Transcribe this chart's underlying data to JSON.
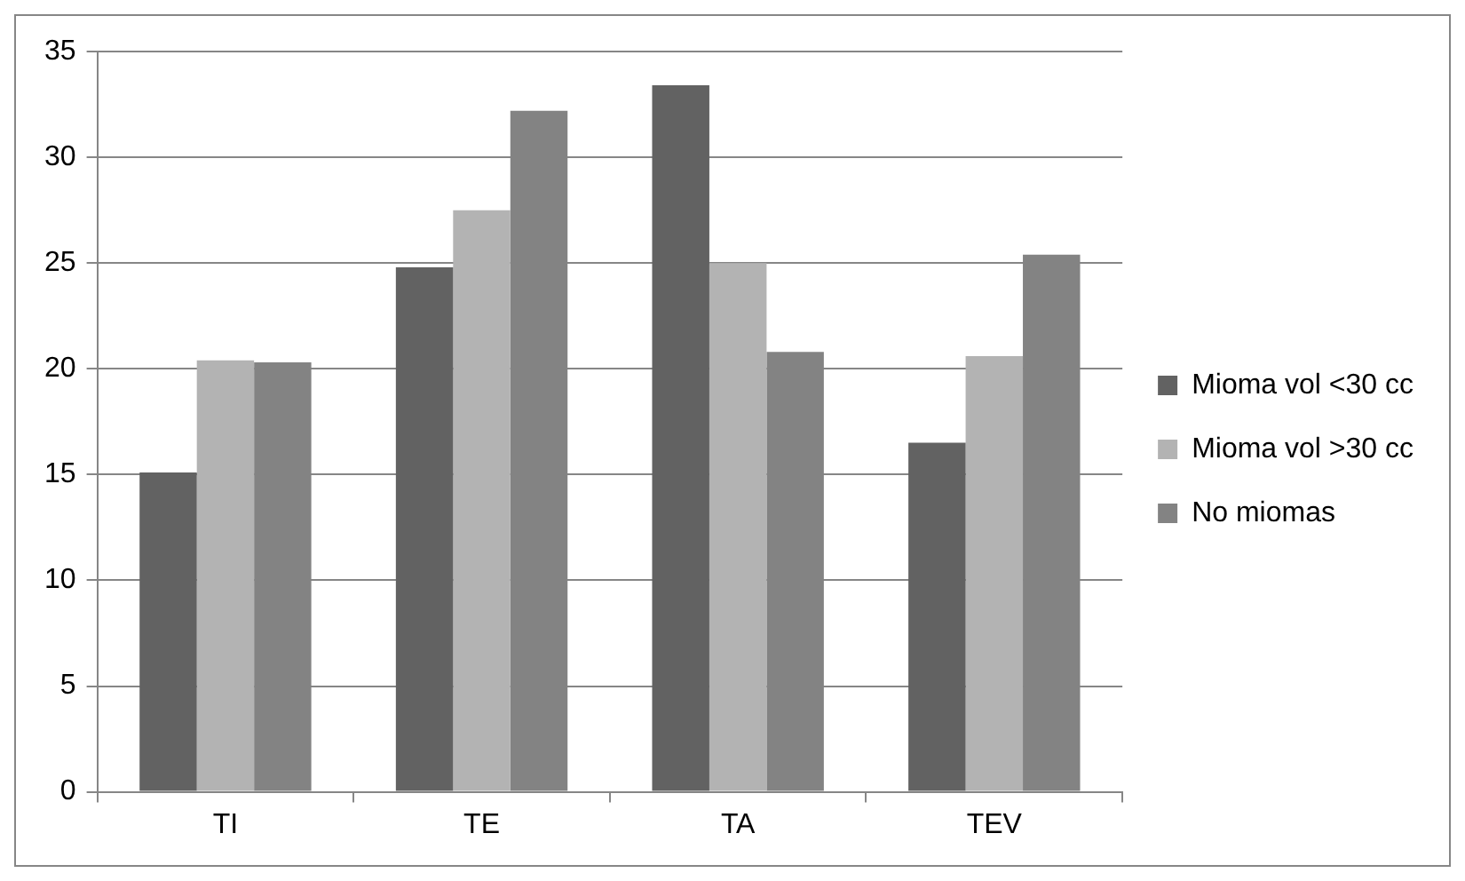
{
  "chart_data": {
    "type": "bar",
    "categories": [
      "TI",
      "TE",
      "TA",
      "TEV"
    ],
    "series": [
      {
        "name": "Mioma vol <30 cc",
        "color": "#626262",
        "values": [
          15.1,
          24.8,
          33.4,
          16.5
        ]
      },
      {
        "name": "Mioma vol >30 cc",
        "color": "#b3b3b3",
        "values": [
          20.4,
          27.5,
          25.0,
          20.6
        ]
      },
      {
        "name": "No miomas",
        "color": "#838383",
        "values": [
          20.3,
          32.2,
          20.8,
          25.4
        ]
      }
    ],
    "ylim": [
      0,
      35
    ],
    "yticks": [
      0,
      5,
      10,
      15,
      20,
      25,
      30,
      35
    ],
    "grid": "y",
    "legend": "right"
  }
}
